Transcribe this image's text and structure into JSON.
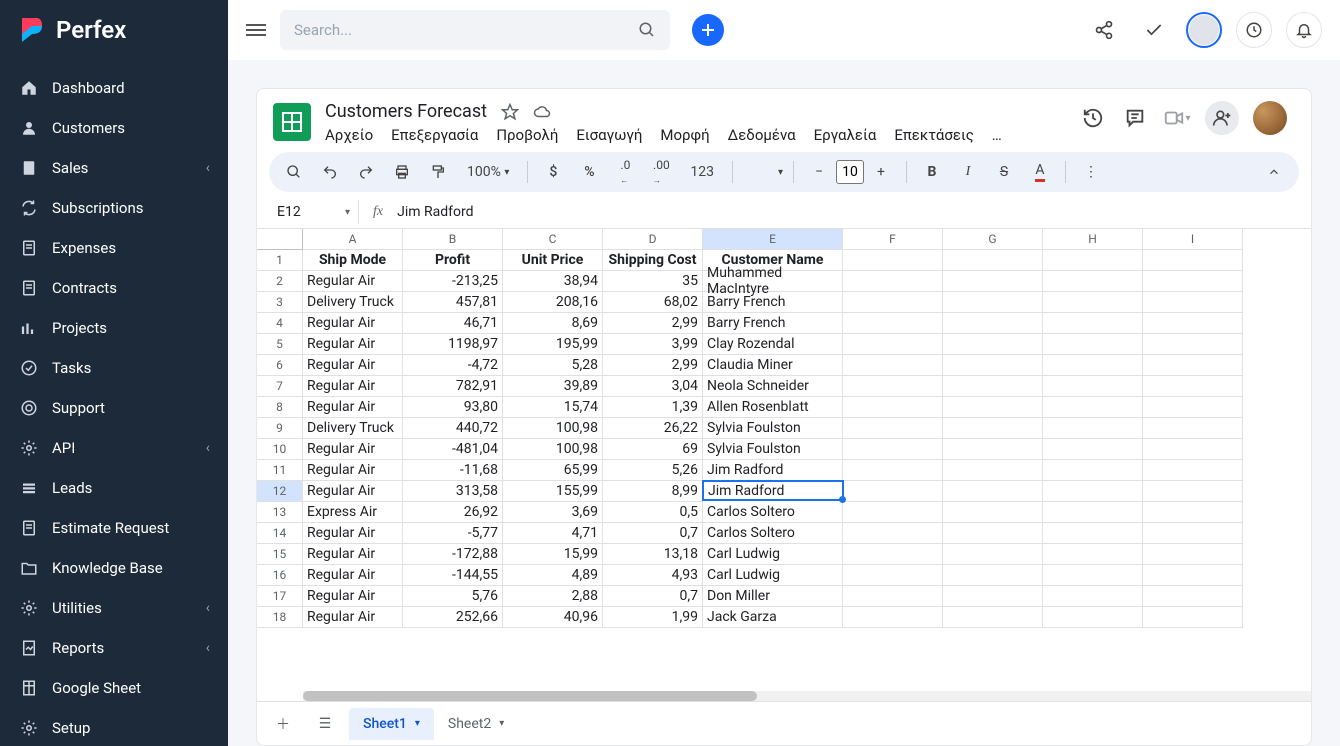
{
  "brand": {
    "name": "Perfex"
  },
  "sidebar": {
    "items": [
      {
        "label": "Dashboard",
        "icon": "home",
        "hasSub": false
      },
      {
        "label": "Customers",
        "icon": "user",
        "hasSub": false
      },
      {
        "label": "Sales",
        "icon": "file",
        "hasSub": true
      },
      {
        "label": "Subscriptions",
        "icon": "refresh",
        "hasSub": false
      },
      {
        "label": "Expenses",
        "icon": "doc",
        "hasSub": false
      },
      {
        "label": "Contracts",
        "icon": "doc",
        "hasSub": false
      },
      {
        "label": "Projects",
        "icon": "chart",
        "hasSub": false
      },
      {
        "label": "Tasks",
        "icon": "check",
        "hasSub": false
      },
      {
        "label": "Support",
        "icon": "life",
        "hasSub": false
      },
      {
        "label": "API",
        "icon": "gear",
        "hasSub": true
      },
      {
        "label": "Leads",
        "icon": "leads",
        "hasSub": false
      },
      {
        "label": "Estimate Request",
        "icon": "doc",
        "hasSub": false
      },
      {
        "label": "Knowledge Base",
        "icon": "folder",
        "hasSub": false
      },
      {
        "label": "Utilities",
        "icon": "gear",
        "hasSub": true
      },
      {
        "label": "Reports",
        "icon": "report",
        "hasSub": true
      },
      {
        "label": "Google Sheet",
        "icon": "sheet",
        "hasSub": false
      },
      {
        "label": "Setup",
        "icon": "gear",
        "hasSub": false
      }
    ]
  },
  "topbar": {
    "searchPlaceholder": "Search..."
  },
  "doc": {
    "title": "Customers Forecast",
    "menus": [
      "Αρχείο",
      "Επεξεργασία",
      "Προβολή",
      "Εισαγωγή",
      "Μορφή",
      "Δεδομένα",
      "Εργαλεία",
      "Επεκτάσεις",
      "…"
    ],
    "zoom": "100%",
    "numfmt": "123",
    "fontSize": "10",
    "nameBox": "E12",
    "formula": "Jim Radford",
    "tabs": [
      {
        "label": "Sheet1",
        "active": true
      },
      {
        "label": "Sheet2",
        "active": false
      }
    ]
  },
  "sheet": {
    "selectedRow": 12,
    "selectedCol": "E",
    "columns": [
      "A",
      "B",
      "C",
      "D",
      "E",
      "F",
      "G",
      "H",
      "I"
    ],
    "headers": [
      "Ship Mode",
      "Profit",
      "Unit Price",
      "Shipping Cost",
      "Customer Name"
    ],
    "alignments": [
      "left",
      "right",
      "right",
      "right",
      "left"
    ],
    "rows": [
      [
        "Regular Air",
        "-213,25",
        "38,94",
        "35",
        "Muhammed MacIntyre"
      ],
      [
        "Delivery Truck",
        "457,81",
        "208,16",
        "68,02",
        "Barry French"
      ],
      [
        "Regular Air",
        "46,71",
        "8,69",
        "2,99",
        "Barry French"
      ],
      [
        "Regular Air",
        "1198,97",
        "195,99",
        "3,99",
        "Clay Rozendal"
      ],
      [
        "Regular Air",
        "-4,72",
        "5,28",
        "2,99",
        "Claudia Miner"
      ],
      [
        "Regular Air",
        "782,91",
        "39,89",
        "3,04",
        "Neola Schneider"
      ],
      [
        "Regular Air",
        "93,80",
        "15,74",
        "1,39",
        "Allen Rosenblatt"
      ],
      [
        "Delivery Truck",
        "440,72",
        "100,98",
        "26,22",
        "Sylvia Foulston"
      ],
      [
        "Regular Air",
        "-481,04",
        "100,98",
        "69",
        "Sylvia Foulston"
      ],
      [
        "Regular Air",
        "-11,68",
        "65,99",
        "5,26",
        "Jim Radford"
      ],
      [
        "Regular Air",
        "313,58",
        "155,99",
        "8,99",
        "Jim Radford"
      ],
      [
        "Express Air",
        "26,92",
        "3,69",
        "0,5",
        "Carlos Soltero"
      ],
      [
        "Regular Air",
        "-5,77",
        "4,71",
        "0,7",
        "Carlos Soltero"
      ],
      [
        "Regular Air",
        "-172,88",
        "15,99",
        "13,18",
        "Carl Ludwig"
      ],
      [
        "Regular Air",
        "-144,55",
        "4,89",
        "4,93",
        "Carl Ludwig"
      ],
      [
        "Regular Air",
        "5,76",
        "2,88",
        "0,7",
        "Don Miller"
      ],
      [
        "Regular Air",
        "252,66",
        "40,96",
        "1,99",
        "Jack Garza"
      ]
    ]
  },
  "colors": {
    "sidebarBg": "#1d2a3a",
    "accent": "#1867ff",
    "sheetsGreen": "#0f9d58",
    "selectBlue": "#1a73e8",
    "selectBg": "#d3e3fd",
    "toolbarBg": "#edf2fa"
  }
}
